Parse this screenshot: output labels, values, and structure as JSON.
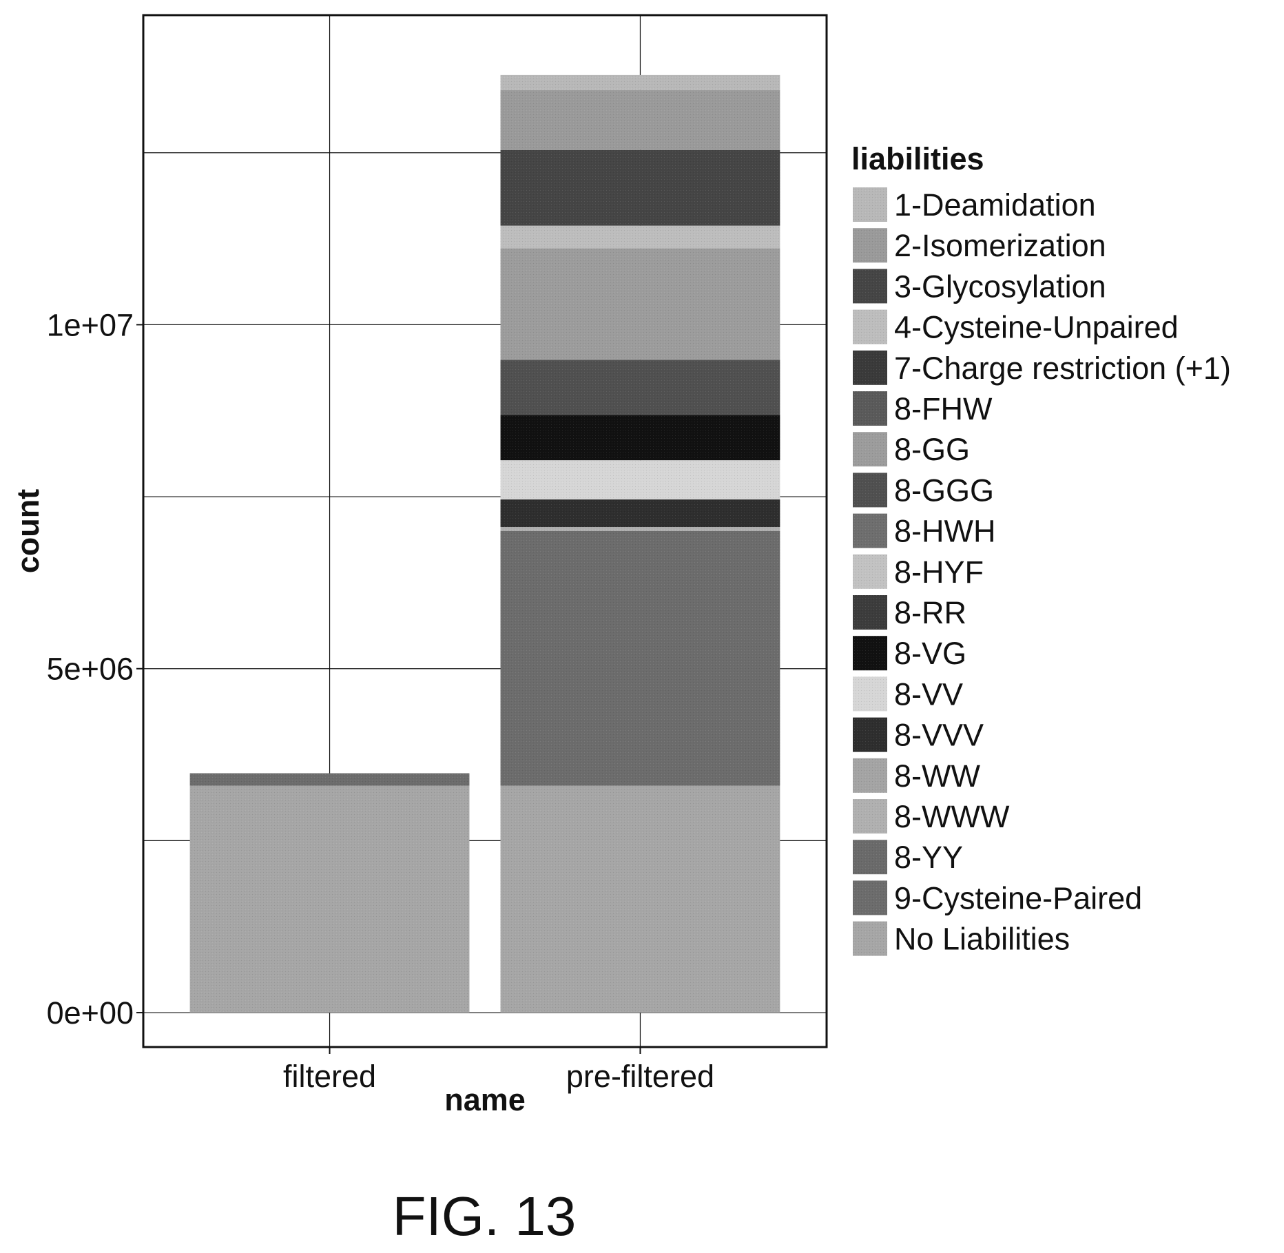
{
  "figure_caption": "FIG. 13",
  "chart_data": {
    "type": "bar",
    "stacked": true,
    "xlabel": "name",
    "ylabel": "count",
    "categories": [
      "filtered",
      "pre-filtered"
    ],
    "ylim": [
      -500000,
      14500000
    ],
    "yticks": [
      0,
      5000000,
      10000000
    ],
    "ytick_labels": [
      "0e+00",
      "5e+06",
      "1e+07"
    ],
    "grid": true,
    "legend": {
      "title": "liabilities",
      "placement": "right"
    },
    "series": [
      {
        "name": "1-Deamidation",
        "values": [
          0,
          220000
        ],
        "color": "#b8b8b8"
      },
      {
        "name": "2-Isomerization",
        "values": [
          0,
          870000
        ],
        "color": "#9a9a9a"
      },
      {
        "name": "3-Glycosylation",
        "values": [
          0,
          1100000
        ],
        "color": "#454545"
      },
      {
        "name": "4-Cysteine-Unpaired",
        "values": [
          0,
          330000
        ],
        "color": "#bdbdbd"
      },
      {
        "name": "7-Charge restriction (+1)",
        "values": [
          0,
          0
        ],
        "color": "#3a3a3a"
      },
      {
        "name": "8-FHW",
        "values": [
          0,
          0
        ],
        "color": "#5a5a5a"
      },
      {
        "name": "8-GG",
        "values": [
          0,
          1620000
        ],
        "color": "#9c9c9c"
      },
      {
        "name": "8-GGG",
        "values": [
          0,
          800000
        ],
        "color": "#505050"
      },
      {
        "name": "8-HWH",
        "values": [
          0,
          0
        ],
        "color": "#6e6e6e"
      },
      {
        "name": "8-HYF",
        "values": [
          0,
          0
        ],
        "color": "#c2c2c2"
      },
      {
        "name": "8-RR",
        "values": [
          0,
          0
        ],
        "color": "#3c3c3c"
      },
      {
        "name": "8-VG",
        "values": [
          0,
          660000
        ],
        "color": "#111111"
      },
      {
        "name": "8-VV",
        "values": [
          0,
          570000
        ],
        "color": "#d6d6d6"
      },
      {
        "name": "8-VVV",
        "values": [
          0,
          400000
        ],
        "color": "#2e2e2e"
      },
      {
        "name": "8-WW",
        "values": [
          0,
          0
        ],
        "color": "#a4a4a4"
      },
      {
        "name": "8-WWW",
        "values": [
          0,
          60000
        ],
        "color": "#b0b0b0"
      },
      {
        "name": "8-YY",
        "values": [
          0,
          0
        ],
        "color": "#6a6a6a"
      },
      {
        "name": "9-Cysteine-Paired",
        "values": [
          180000,
          3700000
        ],
        "color": "#6c6c6c"
      },
      {
        "name": "No Liabilities",
        "values": [
          3300000,
          3300000
        ],
        "color": "#a6a6a6"
      }
    ]
  }
}
